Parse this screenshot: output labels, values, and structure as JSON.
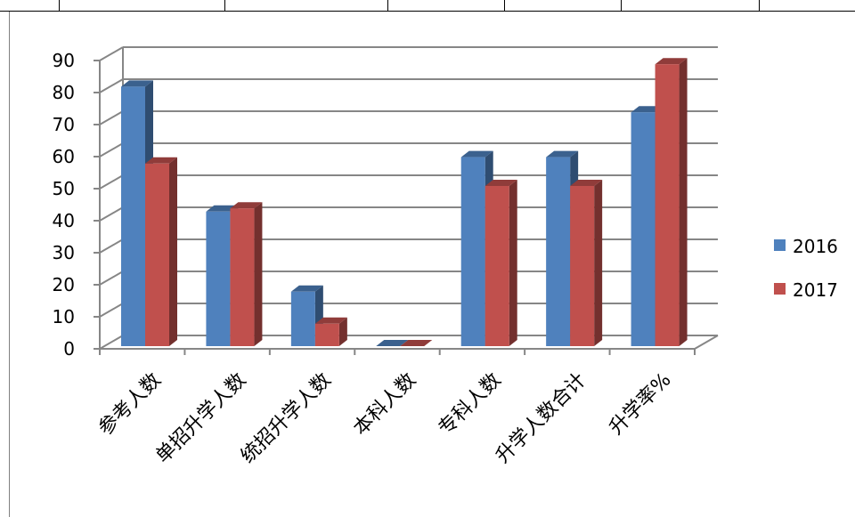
{
  "chart_data": {
    "type": "bar",
    "categories": [
      "参考人数",
      "单招升学人数",
      "统招升学人数",
      "本科人数",
      "专科人数",
      "升学人数合计",
      "升学率%"
    ],
    "series": [
      {
        "name": "2016",
        "values": [
          81,
          42,
          17,
          0,
          59,
          59,
          73
        ],
        "color": "#4F81BD"
      },
      {
        "name": "2017",
        "values": [
          57,
          43,
          7,
          0,
          50,
          50,
          88
        ],
        "color": "#C0504D"
      }
    ],
    "yticks": [
      "0",
      "10",
      "20",
      "30",
      "40",
      "50",
      "60",
      "70",
      "80",
      "90"
    ],
    "ylim": [
      0,
      90
    ],
    "grid": true,
    "legend_position": "right",
    "title": "",
    "xlabel": "",
    "ylabel": ""
  }
}
